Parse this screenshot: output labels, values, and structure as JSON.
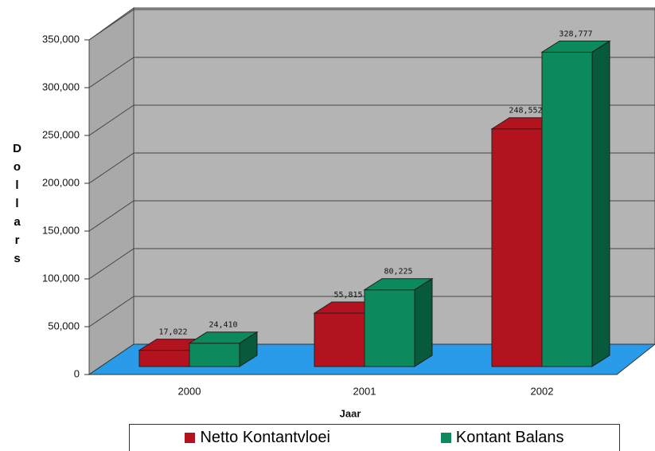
{
  "chart_data": {
    "type": "bar3d",
    "ylabel": "Dollars",
    "xlabel": "Jaar",
    "categories": [
      "2000",
      "2001",
      "2002"
    ],
    "series": [
      {
        "name": "Netto Kontantvloei",
        "color": "#b3121f",
        "values": [
          17022,
          55815,
          248552
        ],
        "value_labels": [
          "17,022",
          "55,815",
          "248,552"
        ]
      },
      {
        "name": "Kontant Balans",
        "color": "#0d8a5c",
        "values": [
          24410,
          80225,
          328777
        ],
        "value_labels": [
          "24,410",
          "80,225",
          "328,777"
        ]
      }
    ],
    "ylim": [
      0,
      350000
    ],
    "yticks": [
      0,
      {
        "value": 50000,
        "label": "50,000"
      },
      {
        "value": 100000,
        "label": "100,000"
      },
      {
        "value": 150000,
        "label": "150,000"
      },
      {
        "value": 200000,
        "label": "200,000"
      },
      {
        "value": 250000,
        "label": "250,000"
      },
      {
        "value": 300000,
        "label": "300,000"
      },
      {
        "value": 350000,
        "label": "350,000"
      }
    ],
    "grid": true
  }
}
